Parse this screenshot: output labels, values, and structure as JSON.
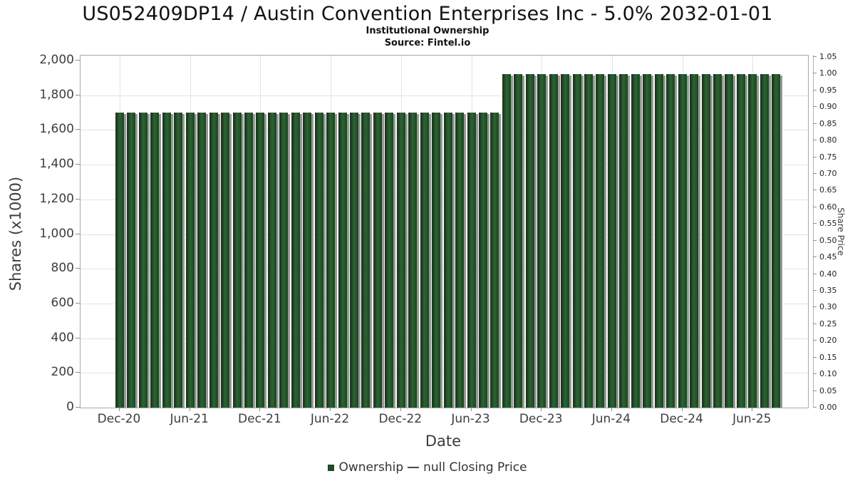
{
  "chart_data": {
    "type": "bar",
    "title": "US052409DP14 / Austin Convention Enterprises Inc - 5.0% 2032-01-01",
    "subtitle": "Institutional Ownership",
    "source": "Source: Fintel.io",
    "xlabel": "Date",
    "ylabel": "Shares (x1000)",
    "y2label": "Share Price",
    "ylim": [
      0,
      2000
    ],
    "y2lim": [
      0,
      1.05
    ],
    "grid": true,
    "legend_position": "bottom-center",
    "bar_color": "#1f4a26",
    "line_legend_color": "#4a4a4a",
    "y_tick_labels": [
      "0",
      "200",
      "400",
      "600",
      "800",
      "1,000",
      "1,200",
      "1,400",
      "1,600",
      "1,800",
      "2,000"
    ],
    "y2_tick_labels": [
      "0.00",
      "0.05",
      "0.10",
      "0.15",
      "0.20",
      "0.25",
      "0.30",
      "0.35",
      "0.40",
      "0.45",
      "0.50",
      "0.55",
      "0.60",
      "0.65",
      "0.70",
      "0.75",
      "0.80",
      "0.85",
      "0.90",
      "0.95",
      "1.00",
      "1.05"
    ],
    "x_tick_labels": [
      "Dec-20",
      "Jun-21",
      "Dec-21",
      "Jun-22",
      "Dec-22",
      "Jun-23",
      "Dec-23",
      "Jun-24",
      "Dec-24",
      "Jun-25"
    ],
    "categories": [
      "Dec-20",
      "Jan-21",
      "Feb-21",
      "Mar-21",
      "Apr-21",
      "May-21",
      "Jun-21",
      "Jul-21",
      "Aug-21",
      "Sep-21",
      "Oct-21",
      "Nov-21",
      "Dec-21",
      "Jan-22",
      "Feb-22",
      "Mar-22",
      "Apr-22",
      "May-22",
      "Jun-22",
      "Jul-22",
      "Aug-22",
      "Sep-22",
      "Oct-22",
      "Nov-22",
      "Dec-22",
      "Jan-23",
      "Feb-23",
      "Mar-23",
      "Apr-23",
      "May-23",
      "Jun-23",
      "Jul-23",
      "Aug-23",
      "Sep-23",
      "Oct-23",
      "Nov-23",
      "Dec-23",
      "Jan-24",
      "Feb-24",
      "Mar-24",
      "Apr-24",
      "May-24",
      "Jun-24",
      "Jul-24",
      "Aug-24",
      "Sep-24",
      "Oct-24",
      "Nov-24",
      "Dec-24",
      "Jan-25",
      "Feb-25",
      "Mar-25",
      "Apr-25",
      "May-25",
      "Jun-25",
      "Jul-25",
      "Aug-25"
    ],
    "series": [
      {
        "name": "Ownership",
        "type": "bar",
        "values": [
          1700,
          1700,
          1700,
          1700,
          1700,
          1700,
          1700,
          1700,
          1700,
          1700,
          1700,
          1700,
          1700,
          1700,
          1700,
          1700,
          1700,
          1700,
          1700,
          1700,
          1700,
          1700,
          1700,
          1700,
          1700,
          1700,
          1700,
          1700,
          1700,
          1700,
          1700,
          1700,
          1700,
          1920,
          1920,
          1920,
          1920,
          1920,
          1920,
          1920,
          1920,
          1920,
          1920,
          1920,
          1920,
          1920,
          1920,
          1920,
          1920,
          1920,
          1920,
          1920,
          1920,
          1920,
          1920,
          1920,
          1920
        ]
      },
      {
        "name": "null Closing Price",
        "type": "line",
        "values": []
      }
    ],
    "legend": {
      "items": [
        {
          "label": "Ownership",
          "swatch": "square"
        },
        {
          "label": "null Closing Price",
          "swatch": "line"
        }
      ]
    }
  }
}
